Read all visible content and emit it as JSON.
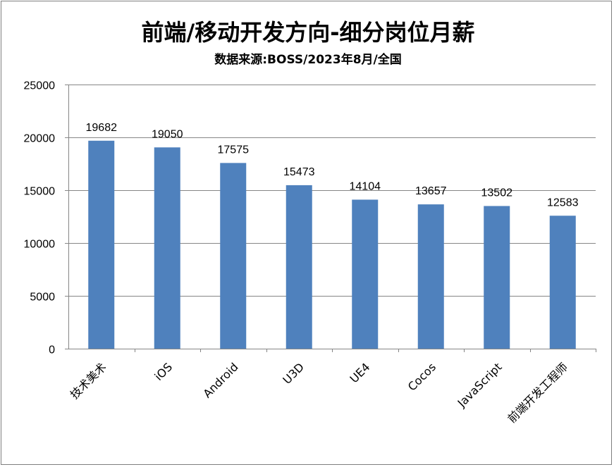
{
  "chart_data": {
    "type": "bar",
    "title": "前端/移动开发方向-细分岗位月薪",
    "subtitle": "数据来源:BOSS/2023年8月/全国",
    "xlabel": "",
    "ylabel": "",
    "categories": [
      "技术美术",
      "iOS",
      "Android",
      "U3D",
      "UE4",
      "Cocos",
      "JavaScript",
      "前端开发工程师"
    ],
    "values": [
      19682,
      19050,
      17575,
      15473,
      14104,
      13657,
      13502,
      12583
    ],
    "ylim": [
      0,
      25000
    ],
    "yticks": [
      0,
      5000,
      10000,
      15000,
      20000,
      25000
    ],
    "grid": true,
    "legend": "none",
    "bar_color": "#4f81bd"
  }
}
